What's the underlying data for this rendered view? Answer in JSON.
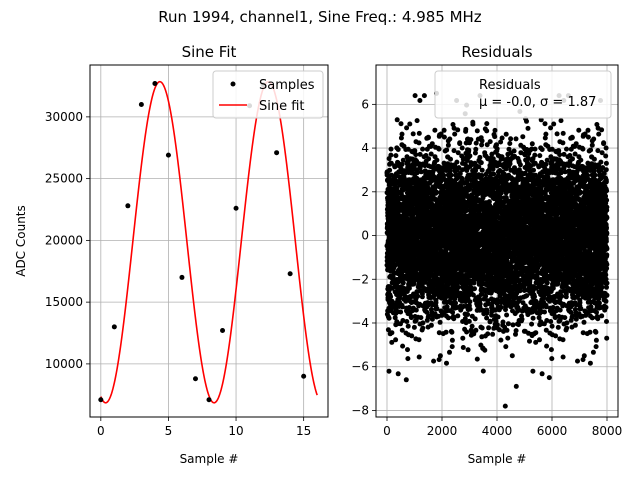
{
  "figure": {
    "suptitle": "Run 1994, channel1, Sine Freq.: 4.985 MHz"
  },
  "chart_data": [
    {
      "type": "scatter+line",
      "title": "Sine Fit",
      "xlabel": "Sample #",
      "ylabel": "ADC Counts",
      "xlim": [
        -0.8,
        16.8
      ],
      "ylim": [
        5700,
        34200
      ],
      "xticks": [
        0,
        5,
        10,
        15
      ],
      "yticks": [
        10000,
        15000,
        20000,
        25000,
        30000
      ],
      "grid": true,
      "legend_position": "top-right",
      "series": [
        {
          "name": "Samples",
          "kind": "markers",
          "color": "#000000",
          "x": [
            0,
            1,
            2,
            3,
            4,
            5,
            6,
            7,
            8,
            9,
            10,
            11,
            12,
            13,
            14,
            15
          ],
          "y": [
            7100,
            13000,
            22800,
            31000,
            32700,
            26900,
            17000,
            8800,
            7100,
            12700,
            22600,
            30900,
            32600,
            27100,
            17300,
            9000
          ]
        },
        {
          "name": "Sine fit",
          "kind": "line",
          "color": "#ff0000",
          "model": {
            "offset": 19850,
            "amplitude": 13000,
            "period": 8.02,
            "phase": -1.85
          },
          "x_range": [
            0,
            16
          ]
        }
      ]
    },
    {
      "type": "scatter",
      "title": "Residuals",
      "xlabel": "Sample #",
      "xlim": [
        -400,
        8400
      ],
      "ylim": [
        -8.3,
        7.8
      ],
      "xticks": [
        0,
        2000,
        4000,
        6000,
        8000
      ],
      "yticks": [
        -8,
        -6,
        -4,
        -2,
        0,
        2,
        4,
        6
      ],
      "grid": true,
      "legend_position": "top-right",
      "series": [
        {
          "name": "Residuals",
          "color": "#000000",
          "n_points": 8000,
          "x_range": [
            0,
            8000
          ],
          "mean": -0.0,
          "sigma": 1.87,
          "outliers": [
            [
              4300,
              -7.8
            ],
            [
              700,
              -6.6
            ],
            [
              5900,
              -6.5
            ],
            [
              4700,
              -6.9
            ],
            [
              1800,
              6.5
            ],
            [
              3500,
              -6.2
            ]
          ]
        }
      ],
      "legend": {
        "line1": "Residuals",
        "line2": "μ = -0.0, σ = 1.87"
      }
    }
  ]
}
